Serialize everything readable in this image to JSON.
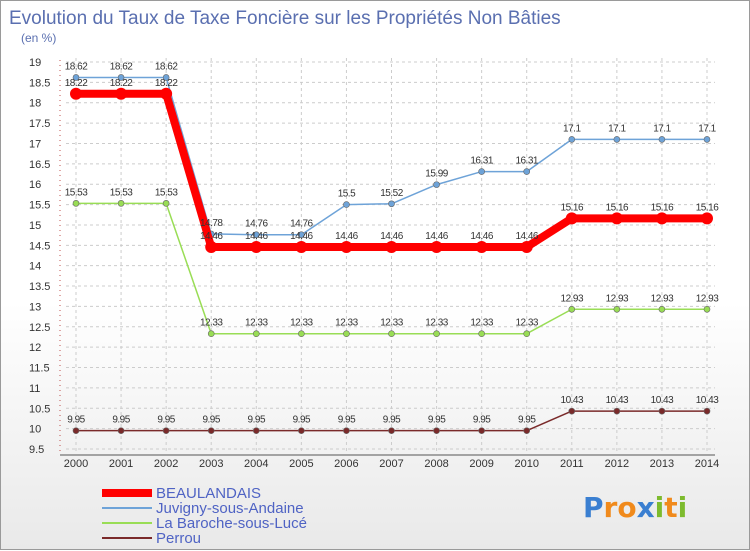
{
  "chart_data": {
    "type": "line",
    "title": "Evolution du Taux de Taxe Foncière sur les Propriétés Non Bâties",
    "subtitle": "(en %)",
    "x": [
      "2000",
      "2001",
      "2002",
      "2003",
      "2004",
      "2005",
      "2006",
      "2007",
      "2008",
      "2009",
      "2010",
      "2011",
      "2012",
      "2013",
      "2014"
    ],
    "ylim": [
      9.5,
      19
    ],
    "yticks": [
      "9.5",
      "10",
      "10.5",
      "11",
      "11.5",
      "12",
      "12.5",
      "13",
      "13.5",
      "14",
      "14.5",
      "15",
      "15.5",
      "16",
      "16.5",
      "17",
      "17.5",
      "18",
      "18.5",
      "19"
    ],
    "series": [
      {
        "name": "BEAULANDAIS",
        "color": "#ff0000",
        "values": [
          18.22,
          18.22,
          18.22,
          14.46,
          14.46,
          14.46,
          14.46,
          14.46,
          14.46,
          14.46,
          14.46,
          15.16,
          15.16,
          15.16,
          15.16
        ],
        "labels": [
          "18.22",
          "18.22",
          "18.22",
          "14.46",
          "14.46",
          "14.46",
          "14.46",
          "14.46",
          "14.46",
          "14.46",
          "14.46",
          "15.16",
          "15.16",
          "15.16",
          "15.16"
        ]
      },
      {
        "name": "Juvigny-sous-Andaine",
        "color": "#6ea3d8",
        "values": [
          18.62,
          18.62,
          18.62,
          14.78,
          14.76,
          14.76,
          15.5,
          15.52,
          15.99,
          16.31,
          16.31,
          17.1,
          17.1,
          17.1,
          17.1
        ],
        "labels": [
          "18.62",
          "18.62",
          "18.62",
          "14.78",
          "14.76",
          "14.76",
          "15.5",
          "15.52",
          "15.99",
          "16.31",
          "16.31",
          "17.1",
          "17.1",
          "17.1",
          "17.1"
        ]
      },
      {
        "name": "La Baroche-sous-Lucé",
        "color": "#99dd55",
        "values": [
          15.53,
          15.53,
          15.53,
          12.33,
          12.33,
          12.33,
          12.33,
          12.33,
          12.33,
          12.33,
          12.33,
          12.93,
          12.93,
          12.93,
          12.93
        ],
        "labels": [
          "15.53",
          "15.53",
          "15.53",
          "12.33",
          "12.33",
          "12.33",
          "12.33",
          "12.33",
          "12.33",
          "12.33",
          "12.33",
          "12.93",
          "12.93",
          "12.93",
          "12.93"
        ]
      },
      {
        "name": "Perrou",
        "color": "#7a2a2a",
        "values": [
          9.95,
          9.95,
          9.95,
          9.95,
          9.95,
          9.95,
          9.95,
          9.95,
          9.95,
          9.95,
          9.95,
          10.43,
          10.43,
          10.43,
          10.43
        ],
        "labels": [
          "9.95",
          "9.95",
          "9.95",
          "9.95",
          "9.95",
          "9.95",
          "9.95",
          "9.95",
          "9.95",
          "9.95",
          "9.95",
          "10.43",
          "10.43",
          "10.43",
          "10.43"
        ]
      }
    ],
    "legend": [
      "BEAULANDAIS",
      "Juvigny-sous-Andaine",
      "La Baroche-sous-Lucé",
      "Perrou"
    ],
    "legend_position": "bottom-left"
  },
  "logo": {
    "text": "Proxiti",
    "letters": [
      "P",
      "r",
      "o",
      "x",
      "i",
      "t",
      "i"
    ],
    "colors": [
      "#3a7fd1",
      "#f08a1c",
      "#f08a1c",
      "#3a7fd1",
      "#7dbb2e",
      "#f08a1c",
      "#7dbb2e"
    ]
  }
}
